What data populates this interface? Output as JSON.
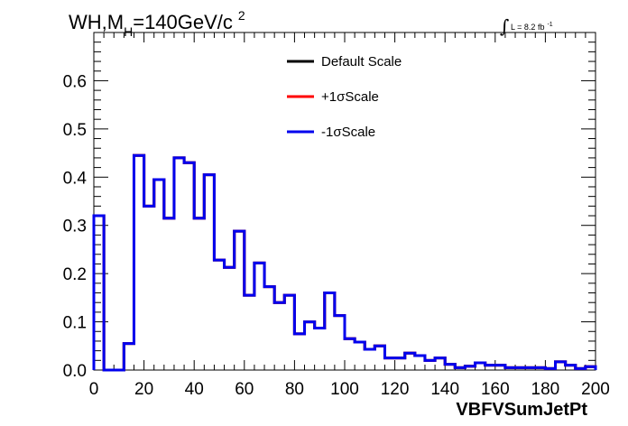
{
  "chart_data": {
    "type": "line",
    "title": {
      "main": "WH,M",
      "subscript": "H",
      "rest": "=140GeV/c",
      "superscript": "2"
    },
    "luminosity": {
      "integral": "∫",
      "text": "L = 8.2 fb",
      "superscript": "-1"
    },
    "xlabel": "VBFVSumJetPt",
    "ylabel": "",
    "xlim": [
      0,
      200
    ],
    "ylim": [
      0,
      0.7
    ],
    "x_ticks": [
      0,
      20,
      40,
      60,
      80,
      100,
      120,
      140,
      160,
      180,
      200
    ],
    "x_tick_labels": [
      "0",
      "20",
      "40",
      "60",
      "80",
      "100",
      "120",
      "140",
      "160",
      "180",
      "200"
    ],
    "y_ticks": [
      0,
      0.1,
      0.2,
      0.3,
      0.4,
      0.5,
      0.6
    ],
    "y_tick_labels": [
      "0.0",
      "0.1",
      "0.2",
      "0.3",
      "0.4",
      "0.5",
      "0.6"
    ],
    "bin_width": 4,
    "bin_edges_start": 0,
    "legend_position": "top-center",
    "grid": false,
    "series": [
      {
        "name": "Default Scale",
        "color": "#000000",
        "values": [
          0.32,
          0.0,
          0.0,
          0.055,
          0.445,
          0.34,
          0.395,
          0.315,
          0.44,
          0.43,
          0.315,
          0.405,
          0.228,
          0.213,
          0.288,
          0.155,
          0.222,
          0.173,
          0.14,
          0.155,
          0.075,
          0.1,
          0.087,
          0.16,
          0.113,
          0.065,
          0.058,
          0.043,
          0.05,
          0.025,
          0.025,
          0.035,
          0.03,
          0.02,
          0.025,
          0.012,
          0.005,
          0.008,
          0.015,
          0.01,
          0.01,
          0.005,
          0.005,
          0.005,
          0.005,
          0.003,
          0.017,
          0.01,
          0.003,
          0.007
        ]
      },
      {
        "name": "+1σScale",
        "color": "#ff0000",
        "values": [
          0.32,
          0.0,
          0.0,
          0.055,
          0.445,
          0.34,
          0.395,
          0.315,
          0.44,
          0.43,
          0.315,
          0.405,
          0.228,
          0.213,
          0.288,
          0.155,
          0.222,
          0.173,
          0.14,
          0.155,
          0.075,
          0.1,
          0.087,
          0.16,
          0.113,
          0.065,
          0.058,
          0.043,
          0.05,
          0.025,
          0.025,
          0.035,
          0.03,
          0.02,
          0.025,
          0.012,
          0.005,
          0.008,
          0.015,
          0.01,
          0.01,
          0.005,
          0.005,
          0.005,
          0.005,
          0.003,
          0.017,
          0.01,
          0.003,
          0.007
        ]
      },
      {
        "name": "-1σScale",
        "color": "#0000ee",
        "values": [
          0.32,
          0.0,
          0.0,
          0.055,
          0.445,
          0.34,
          0.395,
          0.315,
          0.44,
          0.43,
          0.315,
          0.405,
          0.228,
          0.213,
          0.288,
          0.155,
          0.222,
          0.173,
          0.14,
          0.155,
          0.075,
          0.1,
          0.087,
          0.16,
          0.113,
          0.065,
          0.058,
          0.043,
          0.05,
          0.025,
          0.025,
          0.035,
          0.03,
          0.02,
          0.025,
          0.012,
          0.005,
          0.008,
          0.015,
          0.01,
          0.01,
          0.005,
          0.005,
          0.005,
          0.005,
          0.003,
          0.017,
          0.01,
          0.003,
          0.007
        ]
      }
    ]
  }
}
